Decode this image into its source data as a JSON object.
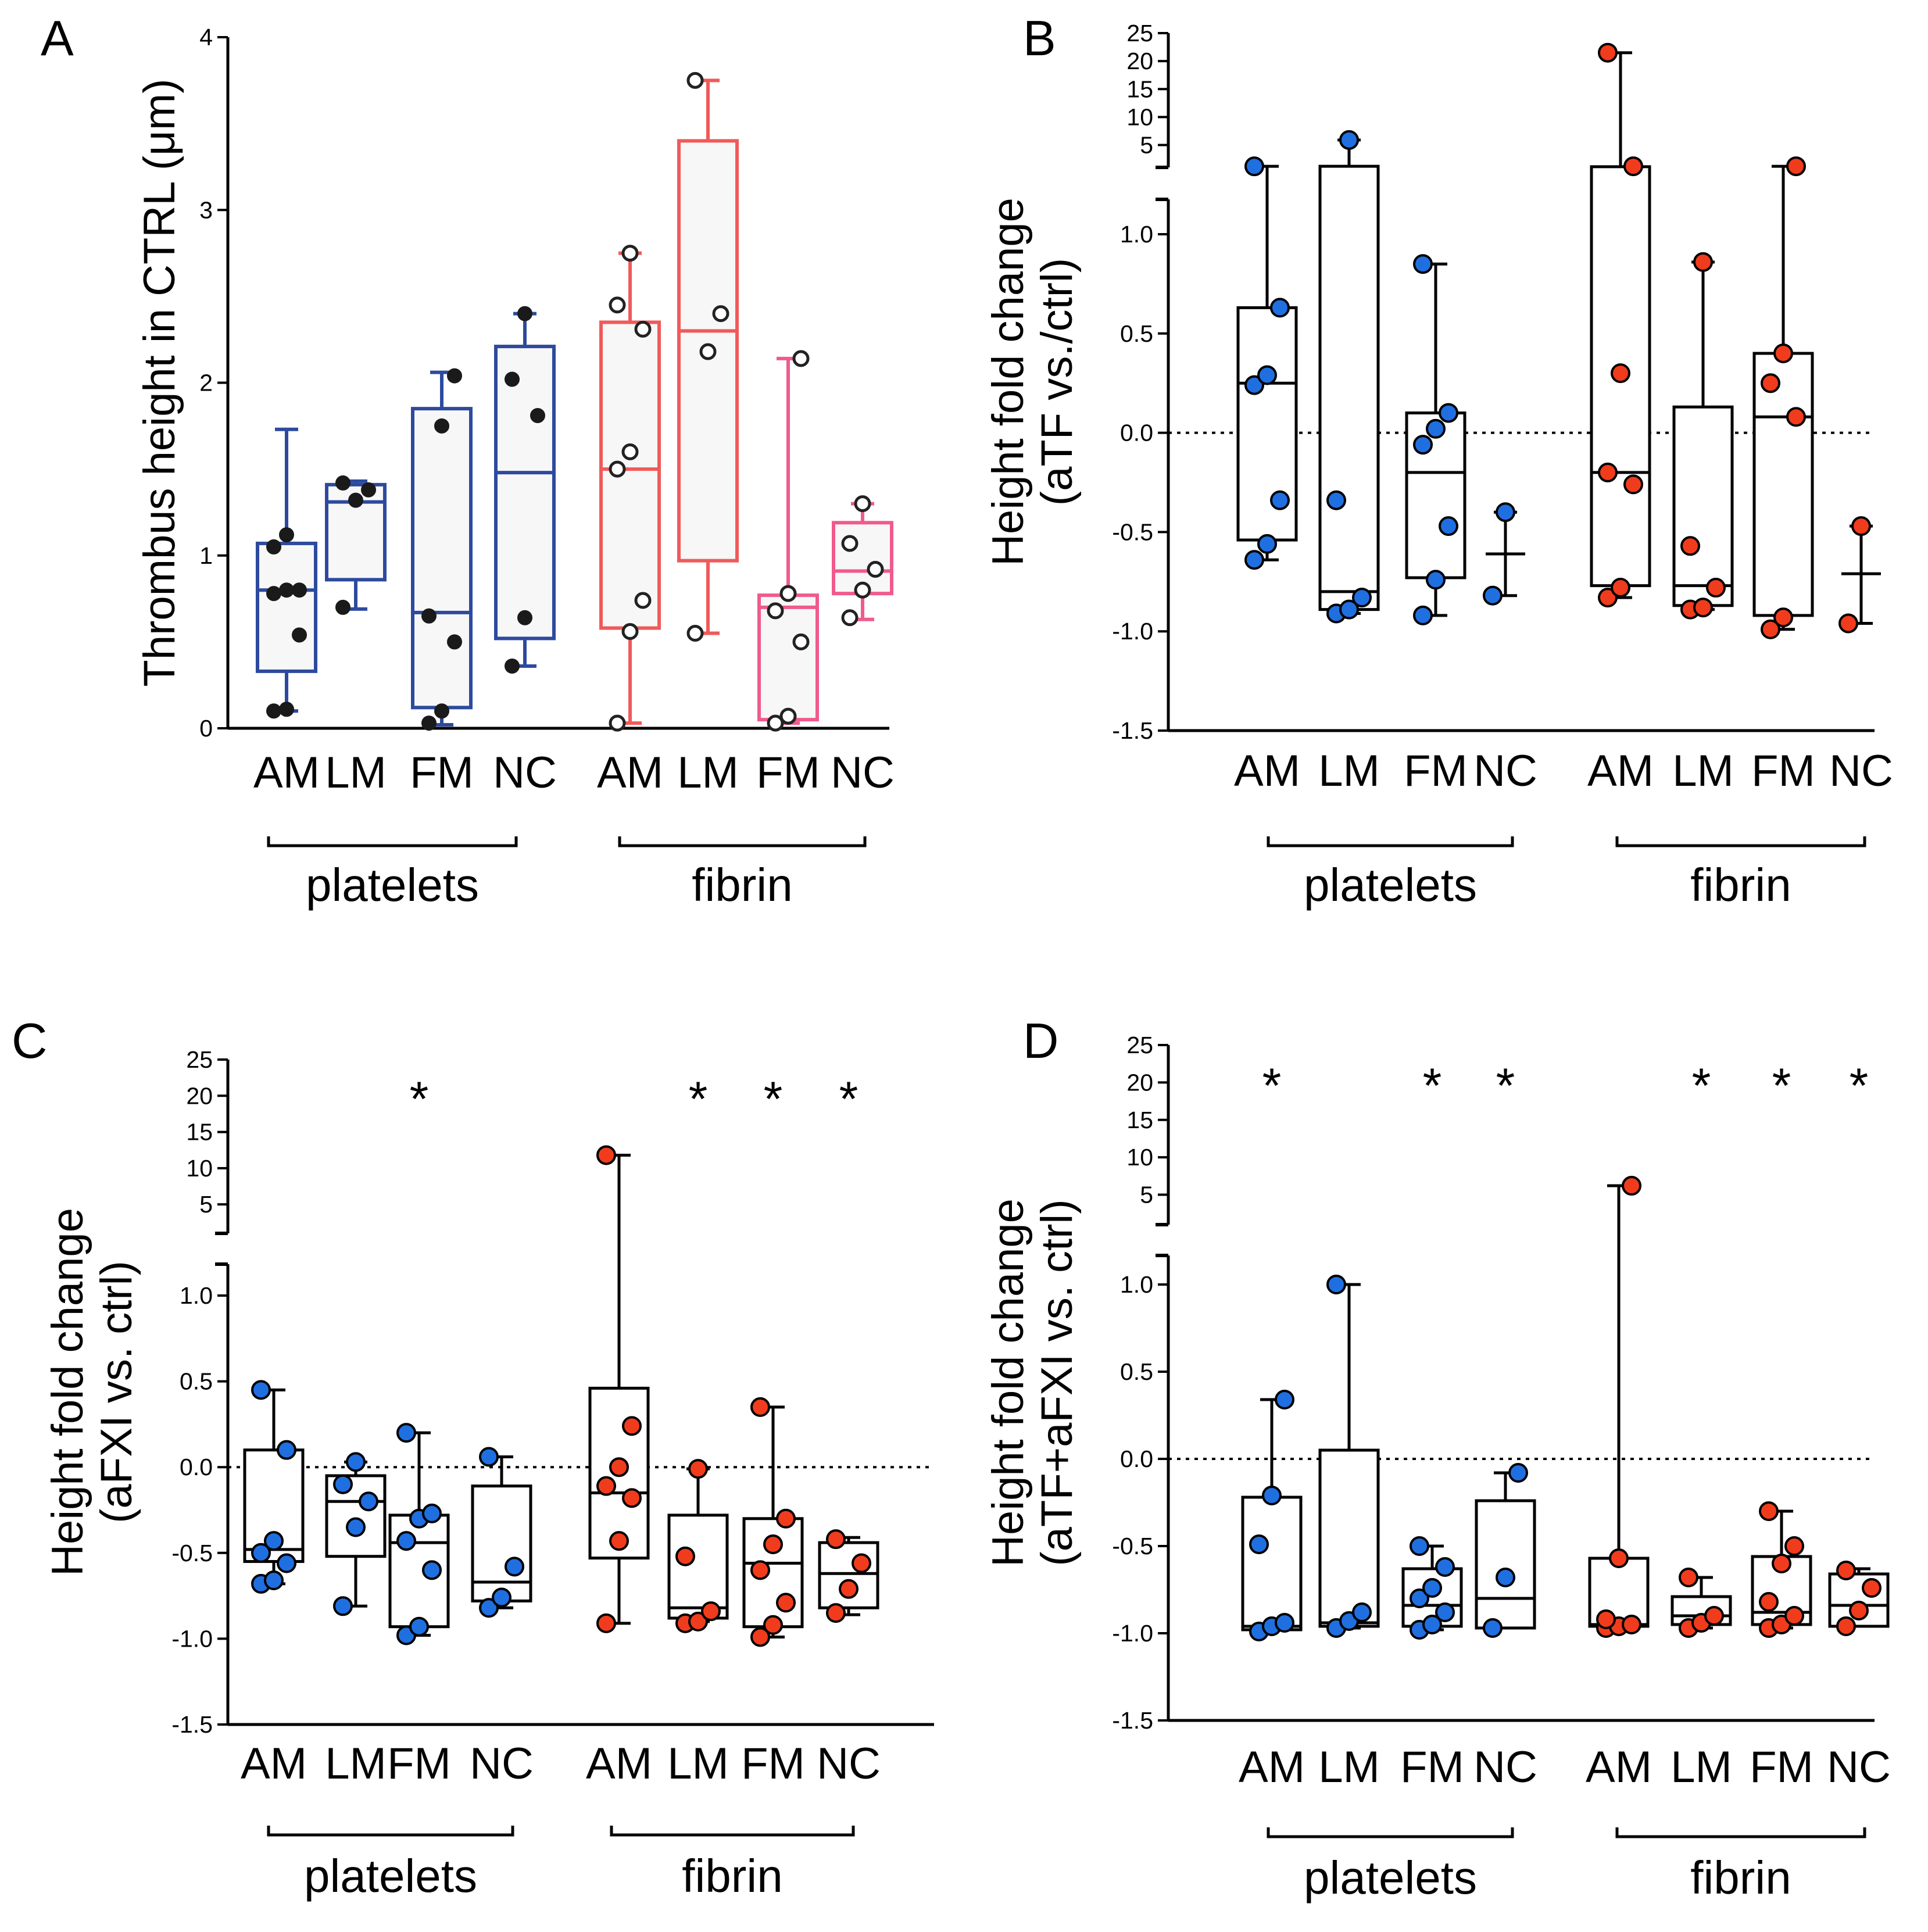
{
  "chart_data": [
    {
      "id": "A",
      "panel_label": "A",
      "type": "box",
      "ylabel": "Thrombus height in CTRL (μm)",
      "ylim": [
        0,
        4
      ],
      "yticks": [
        {
          "value": 0,
          "label": "0"
        },
        {
          "value": 1,
          "label": "1"
        },
        {
          "value": 2,
          "label": "2"
        },
        {
          "value": 3,
          "label": "3"
        },
        {
          "value": 4,
          "label": "4"
        }
      ],
      "categories": [
        "AM",
        "LM",
        "FM",
        "NC",
        "AM",
        "LM",
        "FM",
        "NC"
      ],
      "groups": [
        {
          "name": "platelets",
          "from": 0,
          "to": 3
        },
        {
          "name": "fibrin",
          "from": 4,
          "to": 7
        }
      ],
      "series": [
        {
          "category": "AM",
          "group": "platelets",
          "color": "#2d4a9e",
          "fill": "#f7f7f7",
          "marker": "filled-black",
          "whisker_min": 0.1,
          "q1": 0.33,
          "median": 0.8,
          "q3": 1.07,
          "whisker_max": 1.73,
          "points": [
            0.1,
            0.11,
            0.54,
            0.78,
            0.8,
            0.8,
            1.05,
            1.12
          ]
        },
        {
          "category": "LM",
          "group": "platelets",
          "color": "#2d4a9e",
          "fill": "#f7f7f7",
          "marker": "filled-black",
          "whisker_min": 0.69,
          "q1": 0.86,
          "median": 1.31,
          "q3": 1.41,
          "whisker_max": 1.43,
          "points": [
            0.7,
            1.32,
            1.38,
            1.42
          ]
        },
        {
          "category": "FM",
          "group": "platelets",
          "color": "#2d4a9e",
          "fill": "#f7f7f7",
          "marker": "filled-black",
          "whisker_min": 0.02,
          "q1": 0.12,
          "median": 0.67,
          "q3": 1.85,
          "whisker_max": 2.06,
          "points": [
            0.03,
            0.1,
            0.5,
            0.65,
            1.75,
            2.04
          ]
        },
        {
          "category": "NC",
          "group": "platelets",
          "color": "#2d4a9e",
          "fill": "#f7f7f7",
          "marker": "filled-black",
          "whisker_min": 0.36,
          "q1": 0.52,
          "median": 1.48,
          "q3": 2.21,
          "whisker_max": 2.4,
          "points": [
            0.36,
            0.64,
            1.81,
            2.02,
            2.4
          ]
        },
        {
          "category": "AM",
          "group": "fibrin",
          "color": "#f05a5a",
          "fill": "#f7f7f7",
          "marker": "open",
          "whisker_min": 0.03,
          "q1": 0.58,
          "median": 1.5,
          "q3": 2.35,
          "whisker_max": 2.75,
          "points": [
            0.03,
            0.56,
            0.74,
            1.5,
            1.6,
            2.31,
            2.45,
            2.75
          ]
        },
        {
          "category": "LM",
          "group": "fibrin",
          "color": "#f05a5a",
          "fill": "#f7f7f7",
          "marker": "open",
          "whisker_min": 0.55,
          "q1": 0.97,
          "median": 2.3,
          "q3": 3.4,
          "whisker_max": 3.75,
          "points": [
            0.55,
            2.18,
            2.4,
            3.75
          ]
        },
        {
          "category": "FM",
          "group": "fibrin",
          "color": "#f05a8c",
          "fill": "#f7f7f7",
          "marker": "open",
          "whisker_min": 0.03,
          "q1": 0.05,
          "median": 0.7,
          "q3": 0.77,
          "whisker_max": 2.14,
          "points": [
            0.03,
            0.07,
            0.5,
            0.68,
            0.78,
            2.14
          ]
        },
        {
          "category": "NC",
          "group": "fibrin",
          "color": "#f05a8c",
          "fill": "#f7f7f7",
          "marker": "open",
          "whisker_min": 0.63,
          "q1": 0.78,
          "median": 0.91,
          "q3": 1.19,
          "whisker_max": 1.3,
          "points": [
            0.64,
            0.8,
            0.92,
            1.07,
            1.3
          ]
        }
      ]
    },
    {
      "id": "B",
      "panel_label": "B",
      "type": "box",
      "ylabel_lines": [
        "Height fold change",
        "(aTF vs./ctrl)"
      ],
      "ylim_lower": [
        -1.5,
        1.0
      ],
      "ylim_upper": [
        1,
        25
      ],
      "yticks_lower": [
        {
          "value": -1.5,
          "label": "-1.5"
        },
        {
          "value": -1.0,
          "label": "-1.0"
        },
        {
          "value": -0.5,
          "label": "-0.5"
        },
        {
          "value": 0.0,
          "label": "0.0"
        },
        {
          "value": 0.5,
          "label": "0.5"
        },
        {
          "value": 1.0,
          "label": "1.0"
        }
      ],
      "yticks_upper": [
        {
          "value": 5,
          "label": "5"
        },
        {
          "value": 10,
          "label": "10"
        },
        {
          "value": 15,
          "label": "15"
        },
        {
          "value": 20,
          "label": "20"
        },
        {
          "value": 25,
          "label": "25"
        }
      ],
      "reference_line": 0,
      "categories": [
        "AM",
        "LM",
        "FM",
        "NC",
        "AM",
        "LM",
        "FM",
        "NC"
      ],
      "groups": [
        {
          "name": "platelets",
          "from": 0,
          "to": 3
        },
        {
          "name": "fibrin",
          "from": 4,
          "to": 7
        }
      ],
      "significance": [
        "",
        "",
        "",
        "",
        "",
        "",
        "",
        ""
      ],
      "series": [
        {
          "category": "AM",
          "group": "platelets",
          "color": "#1f6fe0",
          "whisker_min": -0.64,
          "q1": -0.54,
          "median": 0.25,
          "q3": 0.63,
          "whisker_max": 1.19,
          "points": [
            -0.64,
            -0.56,
            -0.34,
            0.24,
            0.29,
            0.63,
            1.19
          ]
        },
        {
          "category": "LM",
          "group": "platelets",
          "color": "#1f6fe0",
          "whisker_min": -0.91,
          "q1": -0.89,
          "median": -0.8,
          "q3": 1.2,
          "whisker_max": 5.9,
          "points": [
            -0.91,
            -0.89,
            -0.83,
            -0.34,
            5.9
          ]
        },
        {
          "category": "FM",
          "group": "platelets",
          "color": "#1f6fe0",
          "whisker_min": -0.92,
          "q1": -0.73,
          "median": -0.2,
          "q3": 0.1,
          "whisker_max": 0.85,
          "points": [
            -0.92,
            -0.74,
            -0.47,
            -0.06,
            0.02,
            0.1,
            0.85
          ]
        },
        {
          "category": "NC",
          "group": "platelets",
          "color": "#1f6fe0",
          "whisker_min": -0.82,
          "q1": null,
          "median": -0.61,
          "q3": null,
          "whisker_max": -0.4,
          "points": [
            -0.82,
            -0.4
          ]
        },
        {
          "category": "AM",
          "group": "fibrin",
          "color": "#f03c1c",
          "whisker_min": -0.83,
          "q1": -0.77,
          "median": -0.2,
          "q3": 1.12,
          "whisker_max": 21.5,
          "points": [
            -0.83,
            -0.78,
            -0.26,
            -0.2,
            0.3,
            1.2,
            21.5
          ]
        },
        {
          "category": "LM",
          "group": "fibrin",
          "color": "#f03c1c",
          "whisker_min": -0.89,
          "q1": -0.87,
          "median": -0.77,
          "q3": 0.13,
          "whisker_max": 0.86,
          "points": [
            -0.89,
            -0.88,
            -0.78,
            -0.57,
            0.86
          ]
        },
        {
          "category": "FM",
          "group": "fibrin",
          "color": "#f03c1c",
          "whisker_min": -0.99,
          "q1": -0.92,
          "median": 0.08,
          "q3": 0.4,
          "whisker_max": 1.2,
          "points": [
            -0.99,
            -0.93,
            0.08,
            0.25,
            0.4,
            1.2
          ]
        },
        {
          "category": "NC",
          "group": "fibrin",
          "color": "#f03c1c",
          "whisker_min": -0.96,
          "q1": null,
          "median": -0.71,
          "q3": null,
          "whisker_max": -0.47,
          "points": [
            -0.96,
            -0.47
          ]
        }
      ]
    },
    {
      "id": "C",
      "panel_label": "C",
      "type": "box",
      "ylabel_lines": [
        "Height fold change",
        "(aFXI vs. ctrl)"
      ],
      "ylim_lower": [
        -1.5,
        1.0
      ],
      "ylim_upper": [
        1,
        25
      ],
      "yticks_lower": [
        {
          "value": -1.5,
          "label": "-1.5"
        },
        {
          "value": -1.0,
          "label": "-1.0"
        },
        {
          "value": -0.5,
          "label": "-0.5"
        },
        {
          "value": 0.0,
          "label": "0.0"
        },
        {
          "value": 0.5,
          "label": "0.5"
        },
        {
          "value": 1.0,
          "label": "1.0"
        }
      ],
      "yticks_upper": [
        {
          "value": 5,
          "label": "5"
        },
        {
          "value": 10,
          "label": "10"
        },
        {
          "value": 15,
          "label": "15"
        },
        {
          "value": 20,
          "label": "20"
        },
        {
          "value": 25,
          "label": "25"
        }
      ],
      "reference_line": 0,
      "categories": [
        "AM",
        "LM",
        "FM",
        "NC",
        "AM",
        "LM",
        "FM",
        "NC"
      ],
      "groups": [
        {
          "name": "platelets",
          "from": 0,
          "to": 3
        },
        {
          "name": "fibrin",
          "from": 4,
          "to": 7
        }
      ],
      "significance": [
        "",
        "",
        "*",
        "",
        "",
        "*",
        "*",
        "*"
      ],
      "series": [
        {
          "category": "AM",
          "group": "platelets",
          "color": "#1f6fe0",
          "whisker_min": -0.68,
          "q1": -0.55,
          "median": -0.48,
          "q3": 0.1,
          "whisker_max": 0.45,
          "points": [
            -0.68,
            -0.66,
            -0.56,
            -0.5,
            -0.43,
            0.1,
            0.45
          ]
        },
        {
          "category": "LM",
          "group": "platelets",
          "color": "#1f6fe0",
          "whisker_min": -0.81,
          "q1": -0.52,
          "median": -0.2,
          "q3": -0.05,
          "whisker_max": 0.03,
          "points": [
            -0.81,
            -0.35,
            -0.2,
            -0.1,
            0.03
          ]
        },
        {
          "category": "FM",
          "group": "platelets",
          "color": "#1f6fe0",
          "whisker_min": -0.98,
          "q1": -0.93,
          "median": -0.44,
          "q3": -0.28,
          "whisker_max": 0.2,
          "points": [
            -0.98,
            -0.93,
            -0.6,
            -0.43,
            -0.3,
            -0.27,
            0.2
          ]
        },
        {
          "category": "NC",
          "group": "platelets",
          "color": "#1f6fe0",
          "whisker_min": -0.82,
          "q1": -0.78,
          "median": -0.67,
          "q3": -0.11,
          "whisker_max": 0.06,
          "points": [
            -0.82,
            -0.76,
            -0.58,
            0.06
          ]
        },
        {
          "category": "AM",
          "group": "fibrin",
          "color": "#f03c1c",
          "whisker_min": -0.91,
          "q1": -0.53,
          "median": -0.15,
          "q3": 0.46,
          "whisker_max": 11.8,
          "points": [
            -0.91,
            -0.43,
            -0.18,
            -0.11,
            0.0,
            0.24,
            11.8
          ]
        },
        {
          "category": "LM",
          "group": "fibrin",
          "color": "#f03c1c",
          "whisker_min": -0.9,
          "q1": -0.88,
          "median": -0.82,
          "q3": -0.28,
          "whisker_max": -0.01,
          "points": [
            -0.91,
            -0.9,
            -0.84,
            -0.52,
            -0.01
          ]
        },
        {
          "category": "FM",
          "group": "fibrin",
          "color": "#f03c1c",
          "whisker_min": -0.99,
          "q1": -0.93,
          "median": -0.56,
          "q3": -0.3,
          "whisker_max": 0.35,
          "points": [
            -0.99,
            -0.92,
            -0.79,
            -0.6,
            -0.45,
            -0.3,
            0.35
          ]
        },
        {
          "category": "NC",
          "group": "fibrin",
          "color": "#f03c1c",
          "whisker_min": -0.86,
          "q1": -0.82,
          "median": -0.62,
          "q3": -0.44,
          "whisker_max": -0.41,
          "points": [
            -0.85,
            -0.71,
            -0.56,
            -0.42
          ]
        }
      ]
    },
    {
      "id": "D",
      "panel_label": "D",
      "type": "box",
      "ylabel_lines": [
        "Height fold change",
        "(aTF+aFXI vs. ctrl)"
      ],
      "ylim_lower": [
        -1.5,
        1.0
      ],
      "ylim_upper": [
        1,
        25
      ],
      "yticks_lower": [
        {
          "value": -1.5,
          "label": "-1.5"
        },
        {
          "value": -1.0,
          "label": "-1.0"
        },
        {
          "value": -0.5,
          "label": "-0.5"
        },
        {
          "value": 0.0,
          "label": "0.0"
        },
        {
          "value": 0.5,
          "label": "0.5"
        },
        {
          "value": 1.0,
          "label": "1.0"
        }
      ],
      "yticks_upper": [
        {
          "value": 5,
          "label": "5"
        },
        {
          "value": 10,
          "label": "10"
        },
        {
          "value": 15,
          "label": "15"
        },
        {
          "value": 20,
          "label": "20"
        },
        {
          "value": 25,
          "label": "25"
        }
      ],
      "reference_line": 0,
      "categories": [
        "AM",
        "LM",
        "FM",
        "NC",
        "AM",
        "LM",
        "FM",
        "NC"
      ],
      "groups": [
        {
          "name": "platelets",
          "from": 0,
          "to": 3
        },
        {
          "name": "fibrin",
          "from": 4,
          "to": 7
        }
      ],
      "significance": [
        "*",
        "",
        "*",
        "*",
        "",
        "*",
        "*",
        "*"
      ],
      "series": [
        {
          "category": "AM",
          "group": "platelets",
          "color": "#1f6fe0",
          "whisker_min": -0.98,
          "q1": -0.98,
          "median": -0.96,
          "q3": -0.22,
          "whisker_max": 0.34,
          "points": [
            -0.99,
            -0.96,
            -0.94,
            -0.49,
            -0.21,
            0.34
          ]
        },
        {
          "category": "LM",
          "group": "platelets",
          "color": "#1f6fe0",
          "whisker_min": -0.97,
          "q1": -0.96,
          "median": -0.94,
          "q3": 0.05,
          "whisker_max": 1.0,
          "points": [
            -0.97,
            -0.93,
            -0.88,
            1.0
          ]
        },
        {
          "category": "FM",
          "group": "platelets",
          "color": "#1f6fe0",
          "whisker_min": -0.98,
          "q1": -0.96,
          "median": -0.84,
          "q3": -0.63,
          "whisker_max": -0.5,
          "points": [
            -0.98,
            -0.95,
            -0.88,
            -0.8,
            -0.74,
            -0.62,
            -0.5
          ]
        },
        {
          "category": "NC",
          "group": "platelets",
          "color": "#1f6fe0",
          "whisker_min": -0.97,
          "q1": -0.97,
          "median": -0.8,
          "q3": -0.24,
          "whisker_max": -0.08,
          "points": [
            -0.97,
            -0.68,
            -0.08
          ]
        },
        {
          "category": "AM",
          "group": "fibrin",
          "color": "#f03c1c",
          "whisker_min": -0.97,
          "q1": -0.96,
          "median": -0.95,
          "q3": -0.57,
          "whisker_max": 6.2,
          "points": [
            -0.97,
            -0.96,
            -0.95,
            -0.92,
            -0.57,
            6.2
          ]
        },
        {
          "category": "LM",
          "group": "fibrin",
          "color": "#f03c1c",
          "whisker_min": -0.97,
          "q1": -0.95,
          "median": -0.9,
          "q3": -0.79,
          "whisker_max": -0.68,
          "points": [
            -0.97,
            -0.94,
            -0.9,
            -0.68
          ]
        },
        {
          "category": "FM",
          "group": "fibrin",
          "color": "#f03c1c",
          "whisker_min": -0.97,
          "q1": -0.95,
          "median": -0.88,
          "q3": -0.56,
          "whisker_max": -0.3,
          "points": [
            -0.97,
            -0.95,
            -0.9,
            -0.82,
            -0.6,
            -0.5,
            -0.3
          ]
        },
        {
          "category": "NC",
          "group": "fibrin",
          "color": "#f03c1c",
          "whisker_min": -0.96,
          "q1": -0.96,
          "median": -0.84,
          "q3": -0.66,
          "whisker_max": -0.63,
          "points": [
            -0.96,
            -0.87,
            -0.74,
            -0.64
          ]
        }
      ]
    }
  ]
}
